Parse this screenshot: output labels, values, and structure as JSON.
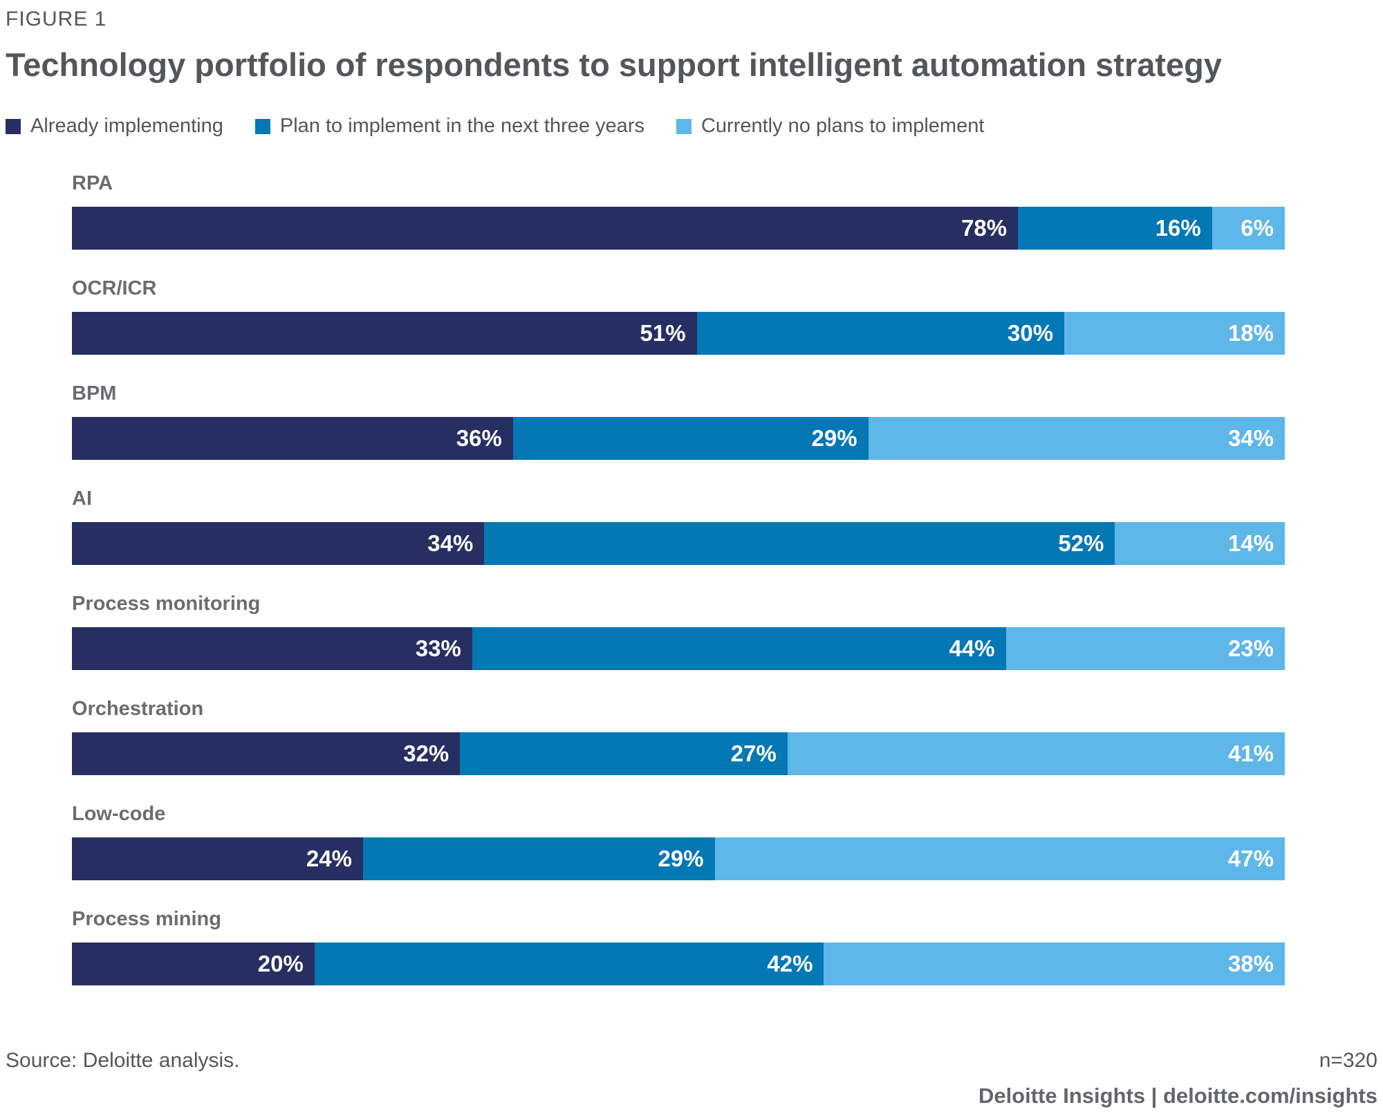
{
  "figure_label": "FIGURE 1",
  "title": "Technology portfolio of respondents to support intelligent automation strategy",
  "colors": {
    "already_implementing": "#272E61",
    "plan_next_three_years": "#0477B5",
    "no_plans": "#5FB6E8",
    "title_text": "#53565A",
    "row_label_text": "#6A6D70",
    "value_text": "#FFFFFF"
  },
  "chart_data": {
    "type": "bar",
    "orientation": "horizontal-stacked",
    "value_suffix": "%",
    "categories": [
      "RPA",
      "OCR/ICR",
      "BPM",
      "AI",
      "Process monitoring",
      "Orchestration",
      "Low-code",
      "Process mining"
    ],
    "series": [
      {
        "name": "Already implementing",
        "color": "#272E61",
        "values": [
          78,
          51,
          36,
          34,
          33,
          32,
          24,
          20
        ]
      },
      {
        "name": "Plan to implement in the next three years",
        "color": "#0477B5",
        "values": [
          16,
          30,
          29,
          52,
          44,
          27,
          29,
          42
        ]
      },
      {
        "name": "Currently no plans to implement",
        "color": "#5FB6E8",
        "values": [
          6,
          18,
          34,
          14,
          23,
          41,
          47,
          38
        ]
      }
    ],
    "legend_position": "top",
    "data_labels": "inside-right, white, bold",
    "axis": "none (no visible axis or gridlines)"
  },
  "footer": {
    "source": "Source: Deloitte analysis.",
    "sample_size": "n=320",
    "brand": "Deloitte Insights | deloitte.com/insights"
  }
}
